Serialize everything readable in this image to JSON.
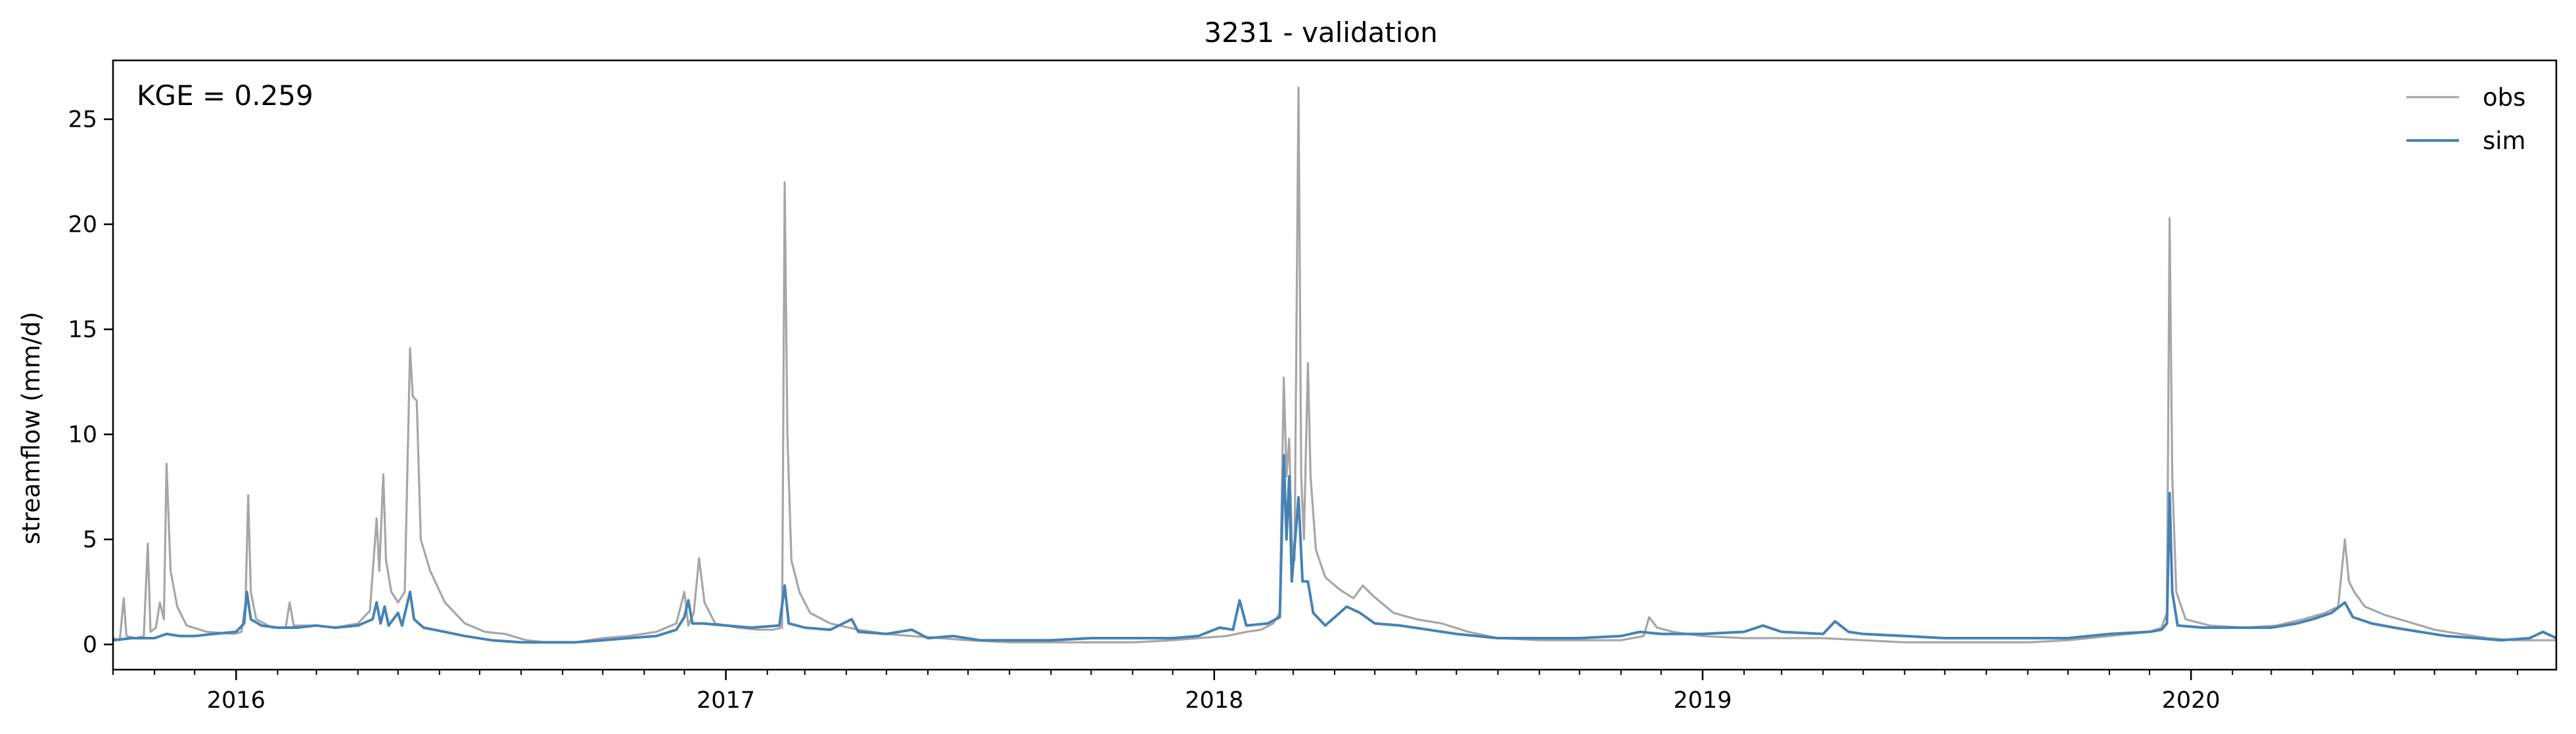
{
  "chart_data": {
    "type": "line",
    "title": "3231 - validation",
    "xlabel": "",
    "ylabel": "streamflow (mm/d)",
    "annotation": "KGE = 0.259",
    "xlim": [
      "2015-10-01",
      "2020-09-30"
    ],
    "ylim": [
      -1.2,
      27.8
    ],
    "yticks": [
      0,
      5,
      10,
      15,
      20,
      25
    ],
    "yticklabels": [
      "0",
      "5",
      "10",
      "15",
      "20",
      "25"
    ],
    "xticks": [
      "2016-01-01",
      "2017-01-01",
      "2018-01-01",
      "2019-01-01",
      "2020-01-01"
    ],
    "xticklabels": [
      "2016",
      "2017",
      "2018",
      "2019",
      "2020"
    ],
    "legend": {
      "position": "upper right",
      "frame": false,
      "entries": [
        "obs",
        "sim"
      ]
    },
    "colors": {
      "obs": "#a6a6a6",
      "sim": "#4682b4"
    },
    "series": [
      {
        "name": "obs",
        "points": [
          [
            "2015-10-01",
            0.3
          ],
          [
            "2015-10-06",
            0.2
          ],
          [
            "2015-10-09",
            2.2
          ],
          [
            "2015-10-11",
            0.4
          ],
          [
            "2015-10-18",
            0.3
          ],
          [
            "2015-10-24",
            0.4
          ],
          [
            "2015-10-27",
            4.8
          ],
          [
            "2015-10-29",
            0.6
          ],
          [
            "2015-11-02",
            0.8
          ],
          [
            "2015-11-05",
            2.0
          ],
          [
            "2015-11-08",
            1.2
          ],
          [
            "2015-11-10",
            8.6
          ],
          [
            "2015-11-13",
            3.5
          ],
          [
            "2015-11-18",
            1.8
          ],
          [
            "2015-11-25",
            0.9
          ],
          [
            "2015-12-10",
            0.6
          ],
          [
            "2015-12-31",
            0.5
          ],
          [
            "2016-01-05",
            0.6
          ],
          [
            "2016-01-08",
            2.0
          ],
          [
            "2016-01-10",
            7.1
          ],
          [
            "2016-01-12",
            2.5
          ],
          [
            "2016-01-16",
            1.2
          ],
          [
            "2016-01-28",
            0.8
          ],
          [
            "2016-02-07",
            0.8
          ],
          [
            "2016-02-10",
            2.0
          ],
          [
            "2016-02-13",
            0.9
          ],
          [
            "2016-03-01",
            0.9
          ],
          [
            "2016-03-15",
            0.8
          ],
          [
            "2016-04-01",
            1.0
          ],
          [
            "2016-04-10",
            1.6
          ],
          [
            "2016-04-15",
            6.0
          ],
          [
            "2016-04-17",
            3.5
          ],
          [
            "2016-04-20",
            8.1
          ],
          [
            "2016-04-22",
            4.0
          ],
          [
            "2016-04-26",
            2.5
          ],
          [
            "2016-05-01",
            2.0
          ],
          [
            "2016-05-06",
            2.5
          ],
          [
            "2016-05-10",
            14.1
          ],
          [
            "2016-05-12",
            11.8
          ],
          [
            "2016-05-15",
            11.6
          ],
          [
            "2016-05-18",
            5.0
          ],
          [
            "2016-05-25",
            3.5
          ],
          [
            "2016-06-05",
            2.0
          ],
          [
            "2016-06-20",
            1.0
          ],
          [
            "2016-07-05",
            0.6
          ],
          [
            "2016-07-20",
            0.5
          ],
          [
            "2016-08-05",
            0.2
          ],
          [
            "2016-08-20",
            0.1
          ],
          [
            "2016-09-10",
            0.1
          ],
          [
            "2016-10-01",
            0.3
          ],
          [
            "2016-10-20",
            0.4
          ],
          [
            "2016-11-10",
            0.6
          ],
          [
            "2016-11-25",
            1.0
          ],
          [
            "2016-12-01",
            2.5
          ],
          [
            "2016-12-04",
            0.9
          ],
          [
            "2016-12-08",
            1.5
          ],
          [
            "2016-12-12",
            4.1
          ],
          [
            "2016-12-16",
            2.0
          ],
          [
            "2016-12-24",
            1.0
          ],
          [
            "2017-01-10",
            0.8
          ],
          [
            "2017-01-25",
            0.7
          ],
          [
            "2017-02-05",
            0.7
          ],
          [
            "2017-02-12",
            0.8
          ],
          [
            "2017-02-14",
            22.0
          ],
          [
            "2017-02-16",
            10.0
          ],
          [
            "2017-02-19",
            4.0
          ],
          [
            "2017-02-25",
            2.5
          ],
          [
            "2017-03-05",
            1.5
          ],
          [
            "2017-03-20",
            1.0
          ],
          [
            "2017-04-10",
            0.7
          ],
          [
            "2017-05-01",
            0.5
          ],
          [
            "2017-05-20",
            0.4
          ],
          [
            "2017-06-10",
            0.3
          ],
          [
            "2017-07-01",
            0.2
          ],
          [
            "2017-08-01",
            0.1
          ],
          [
            "2017-09-01",
            0.1
          ],
          [
            "2017-10-01",
            0.1
          ],
          [
            "2017-11-01",
            0.1
          ],
          [
            "2017-12-01",
            0.2
          ],
          [
            "2017-12-20",
            0.3
          ],
          [
            "2018-01-10",
            0.4
          ],
          [
            "2018-01-25",
            0.6
          ],
          [
            "2018-02-05",
            0.7
          ],
          [
            "2018-02-14",
            1.0
          ],
          [
            "2018-02-19",
            1.5
          ],
          [
            "2018-02-22",
            12.7
          ],
          [
            "2018-02-24",
            8.0
          ],
          [
            "2018-02-26",
            9.8
          ],
          [
            "2018-02-28",
            5.0
          ],
          [
            "2018-03-02",
            4.0
          ],
          [
            "2018-03-05",
            26.5
          ],
          [
            "2018-03-07",
            8.0
          ],
          [
            "2018-03-09",
            5.0
          ],
          [
            "2018-03-12",
            13.4
          ],
          [
            "2018-03-14",
            8.0
          ],
          [
            "2018-03-18",
            4.5
          ],
          [
            "2018-03-25",
            3.2
          ],
          [
            "2018-04-05",
            2.6
          ],
          [
            "2018-04-15",
            2.2
          ],
          [
            "2018-04-22",
            2.8
          ],
          [
            "2018-04-30",
            2.3
          ],
          [
            "2018-05-15",
            1.5
          ],
          [
            "2018-06-01",
            1.2
          ],
          [
            "2018-06-20",
            1.0
          ],
          [
            "2018-07-10",
            0.6
          ],
          [
            "2018-08-01",
            0.3
          ],
          [
            "2018-09-01",
            0.2
          ],
          [
            "2018-10-01",
            0.2
          ],
          [
            "2018-11-01",
            0.2
          ],
          [
            "2018-11-18",
            0.4
          ],
          [
            "2018-11-22",
            1.3
          ],
          [
            "2018-11-28",
            0.8
          ],
          [
            "2018-12-10",
            0.6
          ],
          [
            "2019-01-01",
            0.4
          ],
          [
            "2019-02-01",
            0.3
          ],
          [
            "2019-03-01",
            0.3
          ],
          [
            "2019-04-01",
            0.3
          ],
          [
            "2019-05-01",
            0.2
          ],
          [
            "2019-06-01",
            0.1
          ],
          [
            "2019-07-01",
            0.1
          ],
          [
            "2019-08-01",
            0.1
          ],
          [
            "2019-09-01",
            0.1
          ],
          [
            "2019-10-01",
            0.2
          ],
          [
            "2019-11-01",
            0.4
          ],
          [
            "2019-12-01",
            0.6
          ],
          [
            "2019-12-10",
            0.8
          ],
          [
            "2019-12-14",
            1.5
          ],
          [
            "2019-12-16",
            20.3
          ],
          [
            "2019-12-18",
            8.0
          ],
          [
            "2019-12-21",
            2.5
          ],
          [
            "2019-12-28",
            1.2
          ],
          [
            "2020-01-15",
            0.9
          ],
          [
            "2020-02-10",
            0.8
          ],
          [
            "2020-03-05",
            0.9
          ],
          [
            "2020-03-25",
            1.2
          ],
          [
            "2020-04-10",
            1.5
          ],
          [
            "2020-04-20",
            1.8
          ],
          [
            "2020-04-25",
            5.0
          ],
          [
            "2020-04-28",
            3.0
          ],
          [
            "2020-05-02",
            2.5
          ],
          [
            "2020-05-10",
            1.8
          ],
          [
            "2020-05-25",
            1.4
          ],
          [
            "2020-06-10",
            1.1
          ],
          [
            "2020-07-01",
            0.7
          ],
          [
            "2020-07-20",
            0.5
          ],
          [
            "2020-08-10",
            0.3
          ],
          [
            "2020-08-30",
            0.2
          ],
          [
            "2020-09-30",
            0.2
          ]
        ]
      },
      {
        "name": "sim",
        "points": [
          [
            "2015-10-01",
            0.2
          ],
          [
            "2015-10-15",
            0.3
          ],
          [
            "2015-11-01",
            0.3
          ],
          [
            "2015-11-10",
            0.5
          ],
          [
            "2015-11-20",
            0.4
          ],
          [
            "2015-12-01",
            0.4
          ],
          [
            "2015-12-15",
            0.5
          ],
          [
            "2016-01-01",
            0.6
          ],
          [
            "2016-01-07",
            1.0
          ],
          [
            "2016-01-09",
            2.5
          ],
          [
            "2016-01-12",
            1.2
          ],
          [
            "2016-01-20",
            0.9
          ],
          [
            "2016-02-01",
            0.8
          ],
          [
            "2016-02-15",
            0.8
          ],
          [
            "2016-03-01",
            0.9
          ],
          [
            "2016-03-15",
            0.8
          ],
          [
            "2016-04-01",
            0.9
          ],
          [
            "2016-04-12",
            1.2
          ],
          [
            "2016-04-15",
            2.0
          ],
          [
            "2016-04-18",
            1.0
          ],
          [
            "2016-04-21",
            1.8
          ],
          [
            "2016-04-24",
            0.9
          ],
          [
            "2016-05-01",
            1.5
          ],
          [
            "2016-05-04",
            0.9
          ],
          [
            "2016-05-10",
            2.5
          ],
          [
            "2016-05-13",
            1.2
          ],
          [
            "2016-05-20",
            0.8
          ],
          [
            "2016-06-05",
            0.6
          ],
          [
            "2016-06-20",
            0.4
          ],
          [
            "2016-07-10",
            0.2
          ],
          [
            "2016-08-01",
            0.1
          ],
          [
            "2016-08-20",
            0.1
          ],
          [
            "2016-09-10",
            0.1
          ],
          [
            "2016-10-01",
            0.2
          ],
          [
            "2016-10-20",
            0.3
          ],
          [
            "2016-11-10",
            0.4
          ],
          [
            "2016-11-25",
            0.7
          ],
          [
            "2016-12-01",
            1.3
          ],
          [
            "2016-12-04",
            2.1
          ],
          [
            "2016-12-07",
            1.0
          ],
          [
            "2016-12-15",
            1.0
          ],
          [
            "2017-01-01",
            0.9
          ],
          [
            "2017-01-20",
            0.8
          ],
          [
            "2017-02-10",
            0.9
          ],
          [
            "2017-02-14",
            2.8
          ],
          [
            "2017-02-17",
            1.0
          ],
          [
            "2017-03-01",
            0.8
          ],
          [
            "2017-03-20",
            0.7
          ],
          [
            "2017-04-05",
            1.2
          ],
          [
            "2017-04-10",
            0.6
          ],
          [
            "2017-05-01",
            0.5
          ],
          [
            "2017-05-20",
            0.7
          ],
          [
            "2017-06-01",
            0.3
          ],
          [
            "2017-06-20",
            0.4
          ],
          [
            "2017-07-10",
            0.2
          ],
          [
            "2017-08-01",
            0.2
          ],
          [
            "2017-09-01",
            0.2
          ],
          [
            "2017-10-01",
            0.3
          ],
          [
            "2017-11-01",
            0.3
          ],
          [
            "2017-12-01",
            0.3
          ],
          [
            "2017-12-20",
            0.4
          ],
          [
            "2018-01-05",
            0.8
          ],
          [
            "2018-01-15",
            0.7
          ],
          [
            "2018-01-20",
            2.1
          ],
          [
            "2018-01-25",
            0.9
          ],
          [
            "2018-02-10",
            1.0
          ],
          [
            "2018-02-19",
            1.3
          ],
          [
            "2018-02-22",
            9.0
          ],
          [
            "2018-02-24",
            5.0
          ],
          [
            "2018-02-26",
            8.0
          ],
          [
            "2018-02-28",
            3.0
          ],
          [
            "2018-03-05",
            7.0
          ],
          [
            "2018-03-08",
            3.0
          ],
          [
            "2018-03-12",
            3.0
          ],
          [
            "2018-03-16",
            1.5
          ],
          [
            "2018-03-25",
            0.9
          ],
          [
            "2018-04-10",
            1.8
          ],
          [
            "2018-04-20",
            1.5
          ],
          [
            "2018-05-01",
            1.0
          ],
          [
            "2018-05-20",
            0.9
          ],
          [
            "2018-06-10",
            0.7
          ],
          [
            "2018-07-01",
            0.5
          ],
          [
            "2018-08-01",
            0.3
          ],
          [
            "2018-09-01",
            0.3
          ],
          [
            "2018-10-01",
            0.3
          ],
          [
            "2018-11-01",
            0.4
          ],
          [
            "2018-11-15",
            0.6
          ],
          [
            "2018-12-01",
            0.5
          ],
          [
            "2019-01-01",
            0.5
          ],
          [
            "2019-02-01",
            0.6
          ],
          [
            "2019-02-15",
            0.9
          ],
          [
            "2019-03-01",
            0.6
          ],
          [
            "2019-04-01",
            0.5
          ],
          [
            "2019-04-10",
            1.1
          ],
          [
            "2019-04-20",
            0.6
          ],
          [
            "2019-05-01",
            0.5
          ],
          [
            "2019-06-01",
            0.4
          ],
          [
            "2019-07-01",
            0.3
          ],
          [
            "2019-08-01",
            0.3
          ],
          [
            "2019-09-01",
            0.3
          ],
          [
            "2019-10-01",
            0.3
          ],
          [
            "2019-11-01",
            0.5
          ],
          [
            "2019-12-01",
            0.6
          ],
          [
            "2019-12-10",
            0.7
          ],
          [
            "2019-12-14",
            1.0
          ],
          [
            "2019-12-16",
            7.2
          ],
          [
            "2019-12-18",
            2.5
          ],
          [
            "2019-12-22",
            0.9
          ],
          [
            "2020-01-10",
            0.8
          ],
          [
            "2020-02-10",
            0.8
          ],
          [
            "2020-03-01",
            0.8
          ],
          [
            "2020-03-20",
            1.0
          ],
          [
            "2020-04-01",
            1.2
          ],
          [
            "2020-04-15",
            1.5
          ],
          [
            "2020-04-25",
            2.0
          ],
          [
            "2020-05-01",
            1.3
          ],
          [
            "2020-05-15",
            1.0
          ],
          [
            "2020-06-01",
            0.8
          ],
          [
            "2020-06-20",
            0.6
          ],
          [
            "2020-07-10",
            0.4
          ],
          [
            "2020-08-01",
            0.3
          ],
          [
            "2020-08-20",
            0.2
          ],
          [
            "2020-09-10",
            0.3
          ],
          [
            "2020-09-20",
            0.6
          ],
          [
            "2020-09-30",
            0.3
          ]
        ]
      }
    ]
  }
}
